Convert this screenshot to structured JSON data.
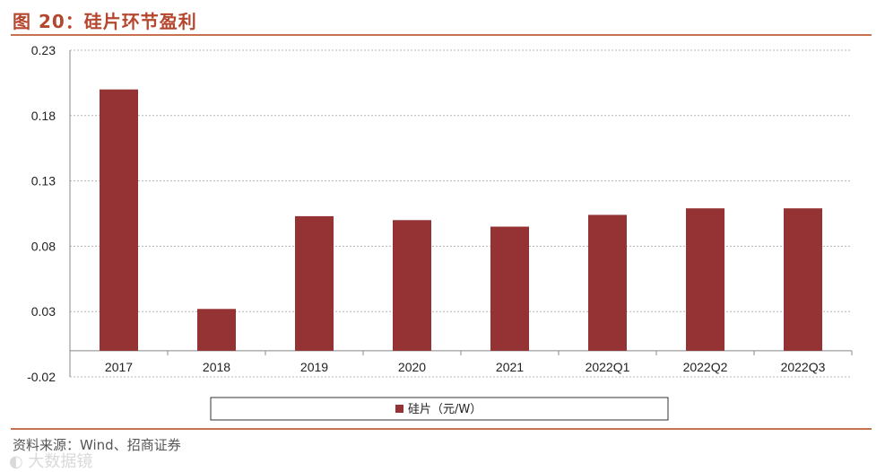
{
  "figure": {
    "title": "图 20：硅片环节盈利",
    "source": "资料来源：Wind、招商证券",
    "watermark": "◐ 大数据镜"
  },
  "colors": {
    "bar": "#943234",
    "title": "#b5472e",
    "rule": "#c6714f"
  },
  "chart_data": {
    "type": "bar",
    "categories": [
      "2017",
      "2018",
      "2019",
      "2020",
      "2021",
      "2022Q1",
      "2022Q2",
      "2022Q3"
    ],
    "series": [
      {
        "name": "硅片（元/W）",
        "values": [
          0.2,
          0.032,
          0.103,
          0.1,
          0.095,
          0.104,
          0.109,
          0.109
        ]
      }
    ],
    "yticks": [
      0.23,
      0.18,
      0.13,
      0.08,
      0.03,
      -0.02
    ],
    "ytick_labels": [
      "0.23",
      "0.18",
      "0.13",
      "0.08",
      "0.03",
      "-0.02"
    ],
    "ylim": [
      -0.02,
      0.23
    ],
    "grid": "horizontal-dashed",
    "legend_position": "bottom"
  }
}
